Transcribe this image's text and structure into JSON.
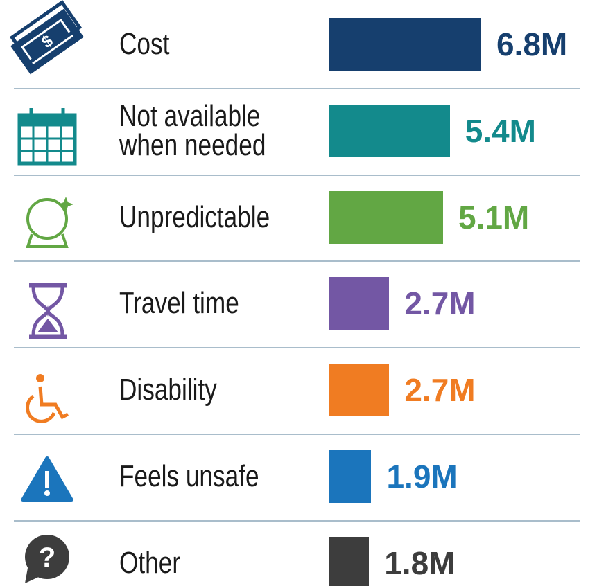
{
  "chart_data": {
    "type": "bar",
    "orientation": "horizontal",
    "categories": [
      "Cost",
      "Not available\nwhen needed",
      "Unpredictable",
      "Travel time",
      "Disability",
      "Feels unsafe",
      "Other"
    ],
    "values": [
      6.8,
      5.4,
      5.1,
      2.7,
      2.7,
      1.9,
      1.8
    ],
    "value_labels": [
      "6.8M",
      "5.4M",
      "5.1M",
      "2.7M",
      "2.7M",
      "1.9M",
      "1.8M"
    ],
    "colors": [
      "#163f6e",
      "#138a8c",
      "#62a744",
      "#7357a4",
      "#f07c22",
      "#1b75bc",
      "#3d3d3d"
    ]
  }
}
